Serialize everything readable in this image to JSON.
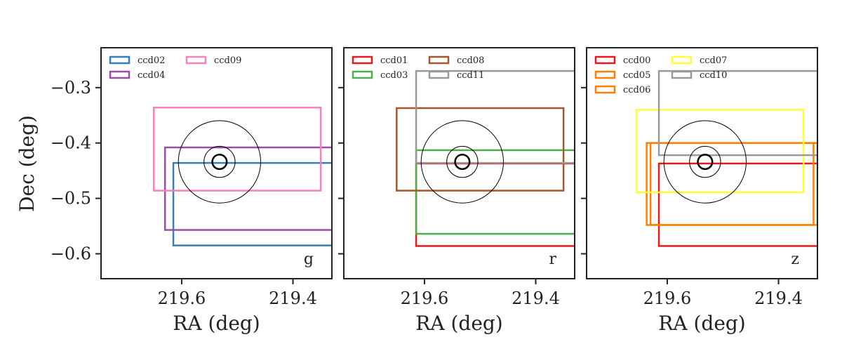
{
  "chart_data": [
    {
      "type": "scatter",
      "band": "g",
      "xlabel": "RA (deg)",
      "ylabel": "Dec (deg)",
      "xlim": [
        219.745,
        219.33
      ],
      "ylim": [
        -0.645,
        -0.228
      ],
      "xticks": [
        219.6,
        219.4
      ],
      "xtick_labels": [
        "219.6",
        "219.4"
      ],
      "yticks": [
        -0.3,
        -0.4,
        -0.5,
        -0.6
      ],
      "ytick_labels": [
        "−0.3",
        "−0.4",
        "−0.5",
        "−0.6"
      ],
      "legend": "top-left",
      "legend_columns": 2,
      "series": [
        {
          "name": "ccd02",
          "color": "#377eb8",
          "ra": [
            219.615,
            219.32
          ],
          "dec": [
            -0.585,
            -0.436
          ]
        },
        {
          "name": "ccd04",
          "color": "#984ea3",
          "ra": [
            219.63,
            219.32
          ],
          "dec": [
            -0.557,
            -0.408
          ]
        },
        {
          "name": "ccd09",
          "color": "#f781bf",
          "ra": [
            219.65,
            219.35
          ],
          "dec": [
            -0.486,
            -0.336
          ]
        }
      ],
      "circles": {
        "center_ra": 219.532,
        "center_dec": -0.434,
        "radii_deg": [
          0.013,
          0.028,
          0.074
        ]
      }
    },
    {
      "type": "scatter",
      "band": "r",
      "xlabel": "RA (deg)",
      "xlim": [
        219.745,
        219.33
      ],
      "ylim": [
        -0.645,
        -0.228
      ],
      "xticks": [
        219.6,
        219.4
      ],
      "xtick_labels": [
        "219.6",
        "219.4"
      ],
      "yticks": [
        -0.3,
        -0.4,
        -0.5,
        -0.6
      ],
      "legend": "top-left",
      "legend_columns": 2,
      "series": [
        {
          "name": "ccd01",
          "color": "#e41a1c",
          "ra": [
            219.615,
            219.32
          ],
          "dec": [
            -0.586,
            -0.437
          ]
        },
        {
          "name": "ccd03",
          "color": "#4daf4a",
          "ra": [
            219.615,
            219.32
          ],
          "dec": [
            -0.564,
            -0.413
          ]
        },
        {
          "name": "ccd08",
          "color": "#a65628",
          "ra": [
            219.65,
            219.35
          ],
          "dec": [
            -0.486,
            -0.337
          ]
        },
        {
          "name": "ccd11",
          "color": "#999999",
          "ra": [
            219.615,
            219.32
          ],
          "dec": [
            -0.436,
            -0.27
          ]
        }
      ],
      "circles": {
        "center_ra": 219.532,
        "center_dec": -0.434,
        "radii_deg": [
          0.013,
          0.028,
          0.074
        ]
      }
    },
    {
      "type": "scatter",
      "band": "z",
      "xlabel": "RA (deg)",
      "xlim": [
        219.745,
        219.33
      ],
      "ylim": [
        -0.645,
        -0.228
      ],
      "xticks": [
        219.6,
        219.4
      ],
      "xtick_labels": [
        "219.6",
        "219.4"
      ],
      "yticks": [
        -0.3,
        -0.4,
        -0.5,
        -0.6
      ],
      "legend": "top-left",
      "legend_columns": 2,
      "series": [
        {
          "name": "ccd00",
          "color": "#e41a1c",
          "ra": [
            219.615,
            219.32
          ],
          "dec": [
            -0.586,
            -0.437
          ]
        },
        {
          "name": "ccd05",
          "color": "#ff7f00",
          "ra": [
            219.637,
            219.337
          ],
          "dec": [
            -0.548,
            -0.4
          ]
        },
        {
          "name": "ccd06",
          "color": "#ff7f00",
          "ra": [
            219.63,
            219.33
          ],
          "dec": [
            -0.548,
            -0.4
          ]
        },
        {
          "name": "ccd07",
          "color": "#ffff33",
          "ra": [
            219.655,
            219.355
          ],
          "dec": [
            -0.489,
            -0.34
          ]
        },
        {
          "name": "ccd10",
          "color": "#999999",
          "ra": [
            219.615,
            219.32
          ],
          "dec": [
            -0.422,
            -0.27
          ]
        }
      ],
      "circles": {
        "center_ra": 219.532,
        "center_dec": -0.434,
        "radii_deg": [
          0.013,
          0.028,
          0.074
        ]
      }
    }
  ]
}
